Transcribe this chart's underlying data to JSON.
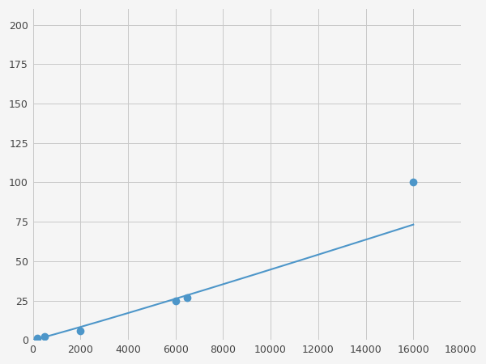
{
  "x_data": [
    200,
    500,
    800,
    2000,
    6000,
    6500,
    16000
  ],
  "y_data": [
    1,
    2,
    2.5,
    6,
    25,
    27,
    100
  ],
  "marker_x": [
    200,
    500,
    2000,
    6000,
    6500,
    16000
  ],
  "marker_y": [
    1,
    2,
    6,
    25,
    27,
    100
  ],
  "line_color": "#4d96c9",
  "marker_color": "#4d96c9",
  "marker_size": 6,
  "xlim": [
    0,
    18000
  ],
  "ylim": [
    0,
    210
  ],
  "xticks": [
    0,
    2000,
    4000,
    6000,
    8000,
    10000,
    12000,
    14000,
    16000,
    18000
  ],
  "yticks": [
    0,
    25,
    50,
    75,
    100,
    125,
    150,
    175,
    200
  ],
  "grid_color": "#c8c8c8",
  "background_color": "#f5f5f5"
}
